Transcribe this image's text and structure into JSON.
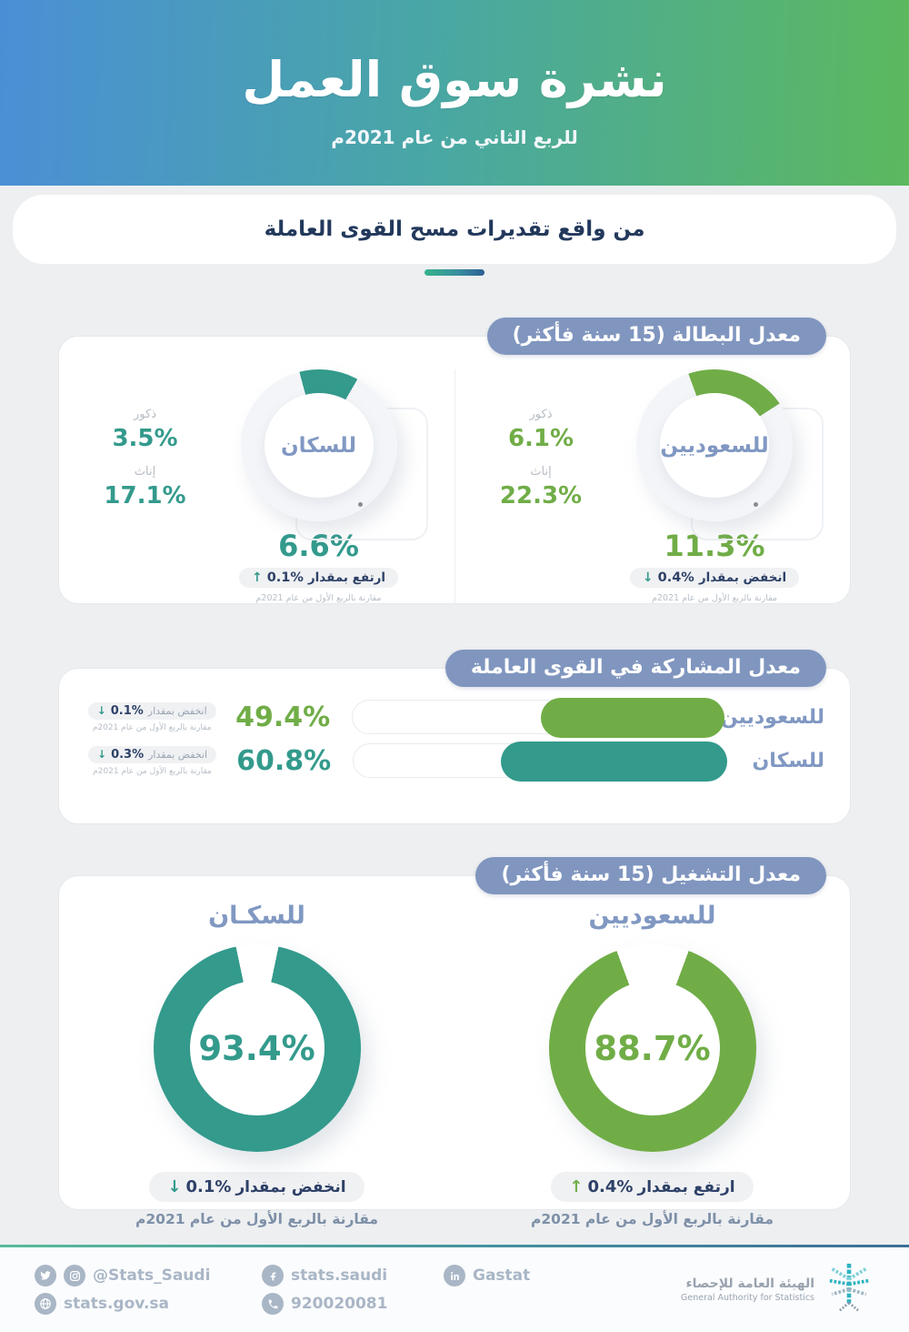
{
  "header": {
    "title": "نشرة سوق العمل",
    "subtitle": "للربع الثاني من عام 2021م",
    "banner": "من واقع تقديرات مسح القوى العاملة"
  },
  "colors": {
    "green": "#70ad47",
    "teal": "#339a8c",
    "ring_rest": "#f3f5f8",
    "pill_bg": "#8096bf",
    "navy": "#2e4168",
    "blue_label": "#8098c2"
  },
  "unemployment": {
    "section_title": "معدل البطالة (15 سنة فأكثر)",
    "saudis": {
      "label": "للسعوديين",
      "value": "11.3%",
      "males_label": "ذكور",
      "males": "6.1%",
      "females_label": "إناث",
      "females": "22.3%",
      "change_label": "انخفض بمقدار",
      "change_value": "0.4%",
      "arrow": "↓",
      "compare_note": "مقارنة بالربع الأول من عام 2021م"
    },
    "population": {
      "label": "للسكان",
      "value": "6.6%",
      "males_label": "ذكور",
      "males": "3.5%",
      "females_label": "إناث",
      "females": "17.1%",
      "change_label": "ارتفع بمقدار",
      "change_value": "0.1%",
      "arrow": "↑",
      "compare_note": "مقارنة بالربع الأول من عام 2021م"
    }
  },
  "participation": {
    "section_title": "معدل المشاركة في القوى العاملة",
    "rows": [
      {
        "label": "للسعوديين",
        "value": "49.4%",
        "change_label": "انخفض بمقدار",
        "change_value": "0.1%",
        "arrow": "↓",
        "note": "مقارنة بالربع الأول من عام 2021م"
      },
      {
        "label": "للسكان",
        "value": "60.8%",
        "change_label": "انخفض بمقدار",
        "change_value": "0.3%",
        "arrow": "↓",
        "note": "مقارنة بالربع الأول من عام 2021م"
      }
    ]
  },
  "employment": {
    "section_title": "معدل التشغيل (15 سنة فأكثر)",
    "saudis": {
      "label": "للسعوديين",
      "value": "88.7%",
      "change_label": "ارتفع بمقدار",
      "change_value": "0.4%",
      "arrow": "↑",
      "note": "مقارنة بالربع الأول من عام 2021م"
    },
    "population": {
      "label": "للسكـان",
      "value": "93.4%",
      "change_label": "انخفض بمقدار",
      "change_value": "0.1%",
      "arrow": "↓",
      "note": "مقارنة بالربع الأول من عام 2021م"
    }
  },
  "footer": {
    "social_handle": "@Stats_Saudi",
    "facebook": "stats.saudi",
    "linkedin": "Gastat",
    "website": "stats.gov.sa",
    "phone": "920020081",
    "org_ar": "الهيئة العامة للإحصاء",
    "org_en": "General Authority for Statistics"
  },
  "chart_data": [
    {
      "type": "pie",
      "title": "معدل البطالة (15 سنة فأكثر)",
      "unit": "%",
      "series": [
        {
          "name": "للسعوديين",
          "value": 11.3,
          "males": 6.1,
          "females": 22.3,
          "change": -0.4,
          "color": "#70ad47"
        },
        {
          "name": "للسكان",
          "value": 6.6,
          "males": 3.5,
          "females": 17.1,
          "change": 0.1,
          "color": "#339a8c"
        }
      ]
    },
    {
      "type": "bar",
      "title": "معدل المشاركة في القوى العاملة",
      "categories": [
        "للسعوديين",
        "للسكان"
      ],
      "values": [
        49.4,
        60.8
      ],
      "changes": [
        -0.1,
        -0.3
      ],
      "unit": "%",
      "xlim": [
        0,
        100
      ],
      "colors": [
        "#70ad47",
        "#339a8c"
      ]
    },
    {
      "type": "pie",
      "title": "معدل التشغيل (15 سنة فأكثر)",
      "unit": "%",
      "series": [
        {
          "name": "للسكان",
          "value": 93.4,
          "change": -0.1,
          "color": "#339a8c"
        },
        {
          "name": "للسعوديين",
          "value": 88.7,
          "change": 0.4,
          "color": "#70ad47"
        }
      ]
    }
  ]
}
